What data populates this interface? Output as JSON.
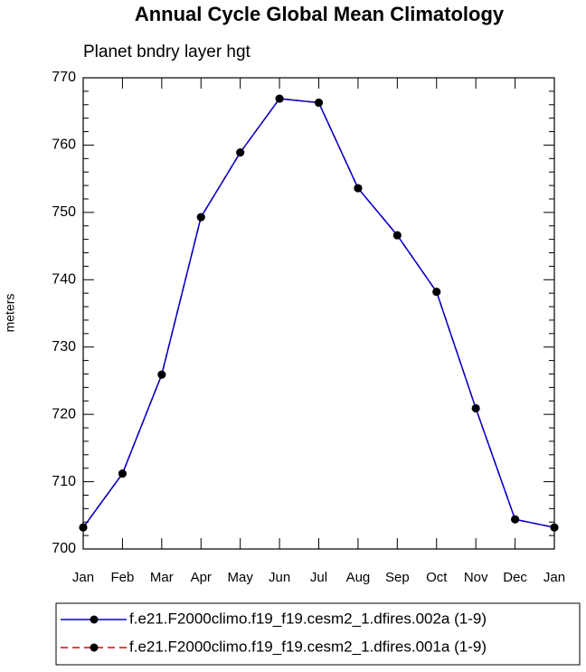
{
  "chart_data": {
    "type": "line",
    "title": "Annual Cycle Global Mean Climatology",
    "subtitle": "Planet bndry layer hgt",
    "ylabel": "meters",
    "categories": [
      "Jan",
      "Feb",
      "Mar",
      "Apr",
      "May",
      "Jun",
      "Jul",
      "Aug",
      "Sep",
      "Oct",
      "Nov",
      "Dec",
      "Jan"
    ],
    "series": [
      {
        "name": "f.e21.F2000climo.f19_f19.cesm2_1.dfires.002a (1-9)",
        "color": "#0000cc",
        "dash": false,
        "marker_color": "#000000",
        "values": [
          703.2,
          711.2,
          725.9,
          749.3,
          758.9,
          766.9,
          766.3,
          753.6,
          746.6,
          738.2,
          720.9,
          704.4,
          703.2
        ]
      },
      {
        "name": "f.e21.F2000climo.f19_f19.cesm2_1.dfires.001a (1-9)",
        "color": "#e00000",
        "dash": true,
        "marker_color": "#000000",
        "values": [
          703.2,
          711.2,
          725.9,
          749.3,
          758.9,
          766.9,
          766.3,
          753.6,
          746.6,
          738.2,
          720.9,
          704.4,
          703.2
        ]
      }
    ],
    "ylim": [
      700,
      770
    ],
    "yticks": [
      700,
      710,
      720,
      730,
      740,
      750,
      760,
      770
    ]
  }
}
